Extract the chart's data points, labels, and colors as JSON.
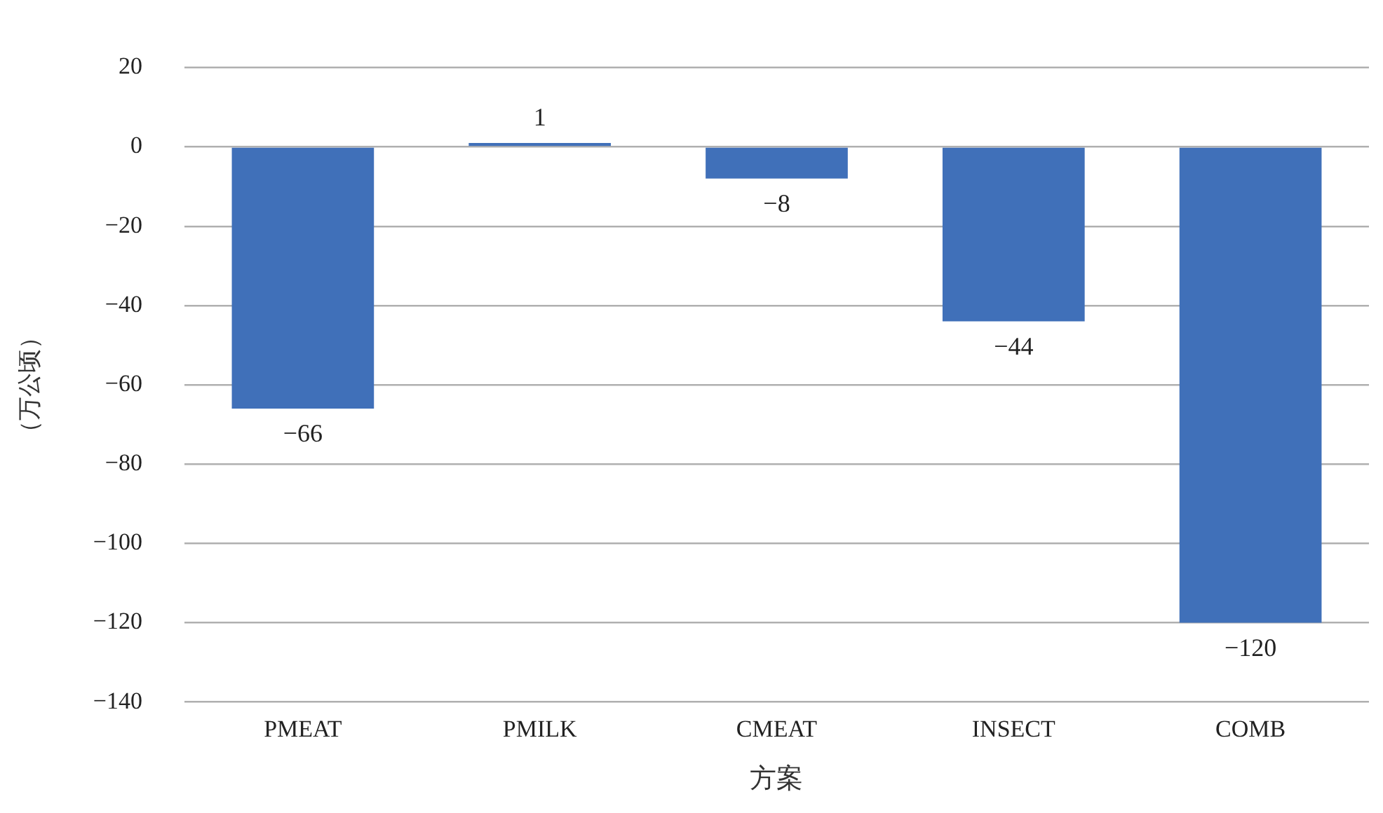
{
  "chart_data": {
    "type": "bar",
    "xlabel": "方案",
    "ylabel": "（万公顷）",
    "categories": [
      "PMEAT",
      "PMILK",
      "CMEAT",
      "INSECT",
      "COMB"
    ],
    "values": [
      -66,
      1,
      -8,
      -44,
      -120
    ],
    "color": "#4070b9",
    "ylim": [
      -140,
      20
    ],
    "yticks": [
      -140,
      -120,
      -100,
      -80,
      -60,
      -40,
      -20,
      0,
      20
    ],
    "grid": "y",
    "legend": false,
    "data_labels": true
  }
}
